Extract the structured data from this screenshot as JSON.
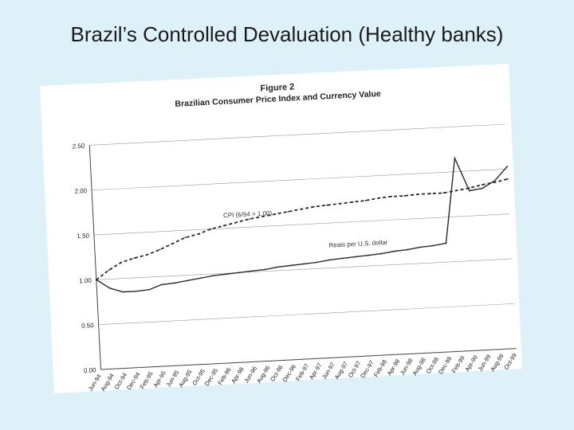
{
  "slide": {
    "title": "Brazil’s Controlled Devaluation (Healthy banks)"
  },
  "figure": {
    "caption_line1": "Figure 2",
    "caption_line2": "Brazilian Consumer Price Index and Currency Value"
  },
  "colors": {
    "background": "#dff1f8",
    "paper": "#ffffff",
    "ink": "#222222"
  },
  "chart_data": {
    "type": "line",
    "title": "Brazilian Consumer Price Index and Currency Value",
    "xlabel": "",
    "ylabel": "",
    "ylim": [
      0,
      2.5
    ],
    "yticks": [
      "0.00",
      "0.50",
      "1.00",
      "1.50",
      "2.00",
      "2.50"
    ],
    "grid": true,
    "categories": [
      "Jun-94",
      "Aug-94",
      "Oct-94",
      "Dec-94",
      "Feb-95",
      "Apr-95",
      "Jun-95",
      "Aug-95",
      "Oct-95",
      "Dec-95",
      "Feb-96",
      "Apr-96",
      "Jun-96",
      "Aug-96",
      "Oct-96",
      "Dec-96",
      "Feb-97",
      "Apr-97",
      "Jun-97",
      "Aug-97",
      "Oct-97",
      "Dec-97",
      "Feb-98",
      "Apr-98",
      "Jun-98",
      "Aug-98",
      "Oct-98",
      "Dec-98",
      "Feb-99",
      "Apr-99",
      "Jun-99",
      "Aug-99",
      "Oct-99"
    ],
    "series": [
      {
        "name": "CPI (6/94 = 1.00)",
        "style": "dashed",
        "values": [
          1.0,
          1.1,
          1.18,
          1.22,
          1.25,
          1.3,
          1.36,
          1.42,
          1.45,
          1.5,
          1.53,
          1.56,
          1.59,
          1.61,
          1.63,
          1.65,
          1.67,
          1.69,
          1.7,
          1.71,
          1.72,
          1.73,
          1.75,
          1.76,
          1.76,
          1.77,
          1.77,
          1.77,
          1.79,
          1.81,
          1.84,
          1.86,
          1.89
        ]
      },
      {
        "name": "Reais per U.S. dollar",
        "style": "solid",
        "values": [
          1.0,
          0.9,
          0.85,
          0.85,
          0.86,
          0.91,
          0.92,
          0.94,
          0.96,
          0.98,
          0.99,
          1.0,
          1.01,
          1.02,
          1.04,
          1.05,
          1.06,
          1.07,
          1.09,
          1.1,
          1.11,
          1.12,
          1.13,
          1.15,
          1.16,
          1.18,
          1.19,
          1.21,
          2.15,
          1.78,
          1.8,
          1.88,
          2.03
        ]
      }
    ],
    "annotations": [
      {
        "label": "CPI (6/94 = 1.00)",
        "category_index": 10,
        "value": 1.62
      },
      {
        "label": "Reais per U.S. dollar",
        "category_index": 18,
        "value": 1.23
      }
    ]
  }
}
